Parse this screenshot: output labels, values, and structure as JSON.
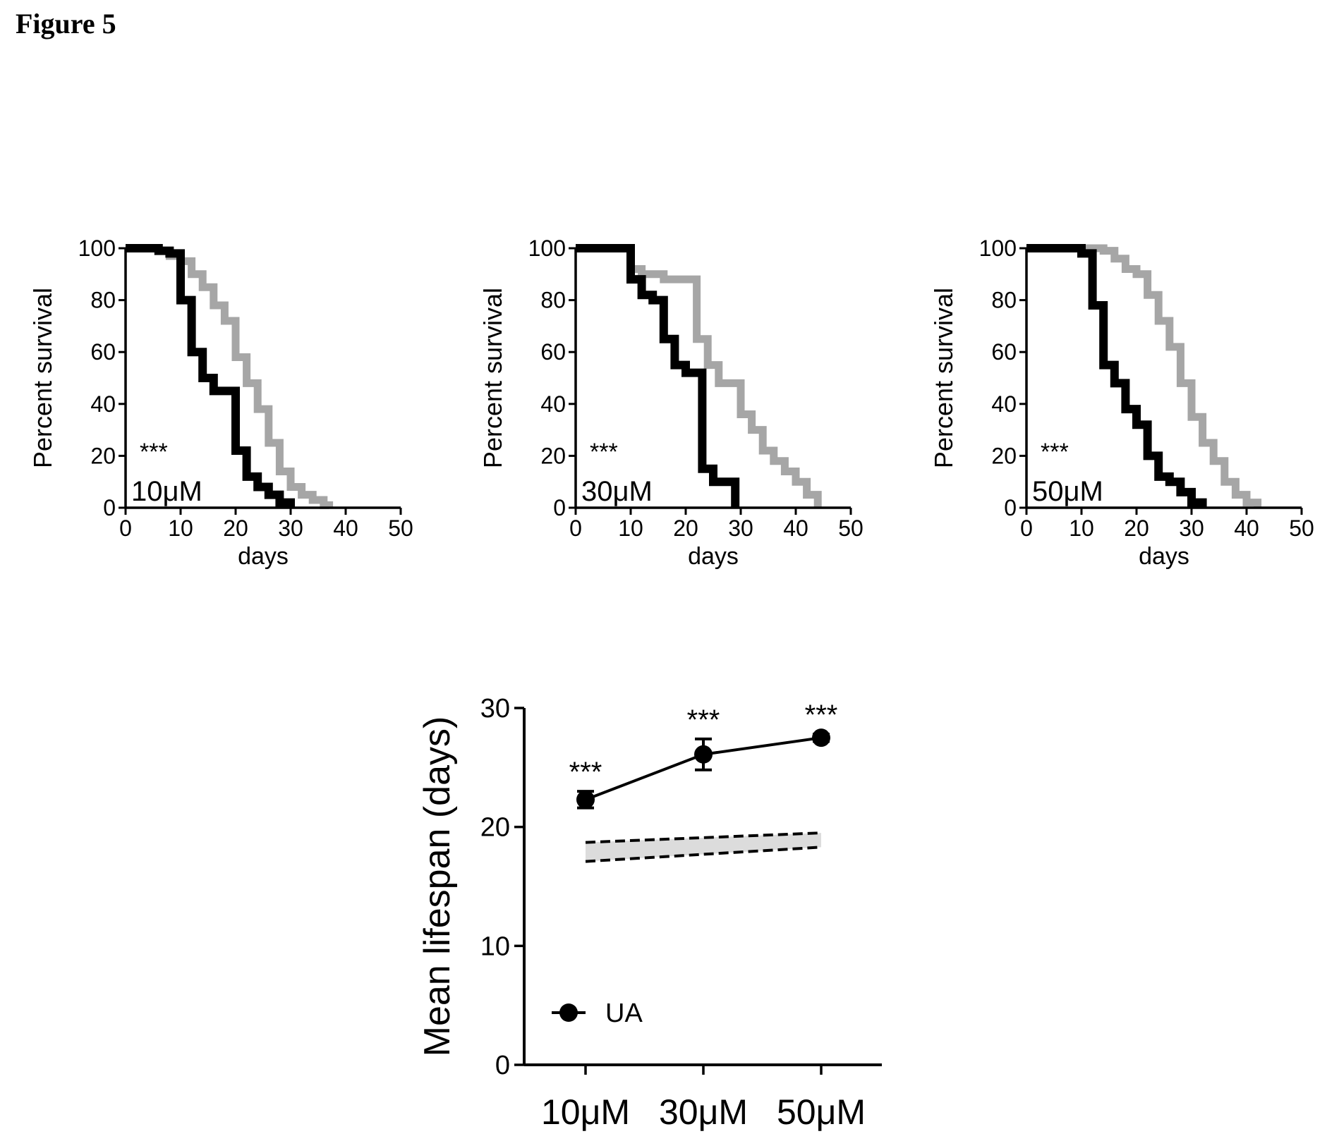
{
  "figure": {
    "title": "Figure 5"
  },
  "styles": {
    "control_color": "#000000",
    "treated_color": "#a6a6a6",
    "band_fill": "#dcdcdc"
  },
  "chart_data": [
    {
      "type": "line",
      "subtype": "kaplan-meier step",
      "xlabel": "days",
      "ylabel": "Percent survival",
      "xlim": [
        0,
        50
      ],
      "ylim": [
        0,
        100
      ],
      "xticks": [
        0,
        10,
        20,
        30,
        40,
        50
      ],
      "yticks": [
        0,
        20,
        40,
        60,
        80,
        100
      ],
      "annotations": [
        "***",
        "10μM"
      ],
      "series": [
        {
          "color": "#a6a6a6",
          "x": [
            0,
            2,
            4,
            6,
            8,
            10,
            12,
            14,
            16,
            18,
            20,
            22,
            24,
            26,
            28,
            30,
            32,
            34,
            36,
            37
          ],
          "y": [
            100,
            100,
            100,
            99,
            97,
            95,
            90,
            85,
            78,
            72,
            58,
            48,
            38,
            25,
            14,
            8,
            5,
            3,
            1,
            0
          ]
        },
        {
          "color": "#000000",
          "x": [
            0,
            2,
            4,
            6,
            8,
            10,
            12,
            14,
            16,
            18,
            20,
            22,
            24,
            26,
            28,
            30
          ],
          "y": [
            100,
            100,
            100,
            99,
            98,
            80,
            60,
            50,
            45,
            45,
            22,
            12,
            8,
            5,
            2,
            0
          ]
        }
      ]
    },
    {
      "type": "line",
      "subtype": "kaplan-meier step",
      "xlabel": "days",
      "ylabel": "Percent survival",
      "xlim": [
        0,
        50
      ],
      "ylim": [
        0,
        100
      ],
      "xticks": [
        0,
        10,
        20,
        30,
        40,
        50
      ],
      "yticks": [
        0,
        20,
        40,
        60,
        80,
        100
      ],
      "annotations": [
        "***",
        "30μM"
      ],
      "series": [
        {
          "color": "#a6a6a6",
          "x": [
            0,
            9,
            10,
            12,
            16,
            20,
            22,
            24,
            26,
            28,
            30,
            32,
            34,
            36,
            38,
            40,
            42,
            44
          ],
          "y": [
            100,
            100,
            92,
            90,
            88,
            88,
            65,
            55,
            48,
            48,
            36,
            30,
            22,
            18,
            14,
            10,
            5,
            0
          ]
        },
        {
          "color": "#000000",
          "x": [
            0,
            9,
            10,
            12,
            14,
            16,
            18,
            20,
            22,
            23,
            25,
            27,
            29
          ],
          "y": [
            100,
            100,
            88,
            82,
            80,
            65,
            55,
            52,
            52,
            15,
            10,
            10,
            0
          ]
        }
      ]
    },
    {
      "type": "line",
      "subtype": "kaplan-meier step",
      "xlabel": "days",
      "ylabel": "Percent survival",
      "xlim": [
        0,
        50
      ],
      "ylim": [
        0,
        100
      ],
      "xticks": [
        0,
        10,
        20,
        30,
        40,
        50
      ],
      "yticks": [
        0,
        20,
        40,
        60,
        80,
        100
      ],
      "annotations": [
        "***",
        "50μM"
      ],
      "series": [
        {
          "color": "#a6a6a6",
          "x": [
            0,
            10,
            12,
            14,
            16,
            18,
            20,
            22,
            24,
            26,
            28,
            30,
            32,
            34,
            36,
            38,
            40,
            42
          ],
          "y": [
            100,
            100,
            100,
            99,
            96,
            92,
            90,
            82,
            72,
            62,
            48,
            35,
            25,
            18,
            10,
            5,
            2,
            0
          ]
        },
        {
          "color": "#000000",
          "x": [
            0,
            8,
            10,
            12,
            14,
            16,
            18,
            20,
            22,
            24,
            26,
            28,
            30,
            32
          ],
          "y": [
            100,
            100,
            98,
            78,
            55,
            48,
            38,
            32,
            20,
            12,
            10,
            6,
            2,
            0
          ]
        }
      ]
    },
    {
      "type": "line",
      "categories": [
        "10μM",
        "30μM",
        "50μM"
      ],
      "ylabel": "Mean lifespan (days)",
      "ylim": [
        0,
        30
      ],
      "yticks": [
        0,
        10,
        20,
        30
      ],
      "series": [
        {
          "name": "UA",
          "values": [
            22.3,
            26.1,
            27.5
          ],
          "error": [
            0.7,
            1.3,
            0.3
          ],
          "significance": [
            "***",
            "***",
            "***"
          ]
        }
      ],
      "control_band": {
        "lower": [
          17.1,
          17.7,
          18.3
        ],
        "upper": [
          18.7,
          19.1,
          19.5
        ]
      },
      "legend_position": "bottom-left"
    }
  ]
}
